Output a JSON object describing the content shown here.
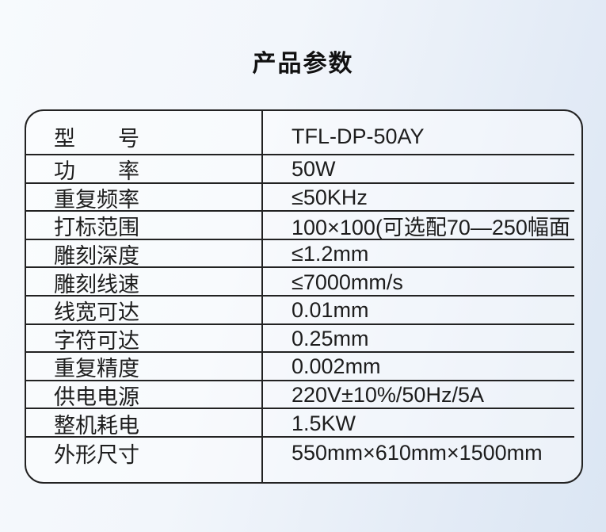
{
  "page": {
    "title": "产品参数"
  },
  "table": {
    "rows": [
      {
        "label": "型　　号",
        "value": "TFL-DP-50AY"
      },
      {
        "label": "功　　率",
        "value": "50W"
      },
      {
        "label": "重复频率",
        "value": "≤50KHz"
      },
      {
        "label": "打标范围",
        "value": "100×100(可选配70—250幅面"
      },
      {
        "label": "雕刻深度",
        "value": "≤1.2mm"
      },
      {
        "label": "雕刻线速",
        "value": "≤7000mm/s"
      },
      {
        "label": "线宽可达",
        "value": "0.01mm"
      },
      {
        "label": "字符可达",
        "value": "0.25mm"
      },
      {
        "label": "重复精度",
        "value": "0.002mm"
      },
      {
        "label": "供电电源",
        "value": "220V±10%/50Hz/5A"
      },
      {
        "label": "整机耗电",
        "value": "1.5KW"
      },
      {
        "label": "外形尺寸",
        "value": "550mm×610mm×1500mm"
      }
    ]
  },
  "colors": {
    "table_border": "#222222",
    "text": "#1d1d1d",
    "background_light": "#f7fafd",
    "background_blue": "#dbe6f3"
  }
}
